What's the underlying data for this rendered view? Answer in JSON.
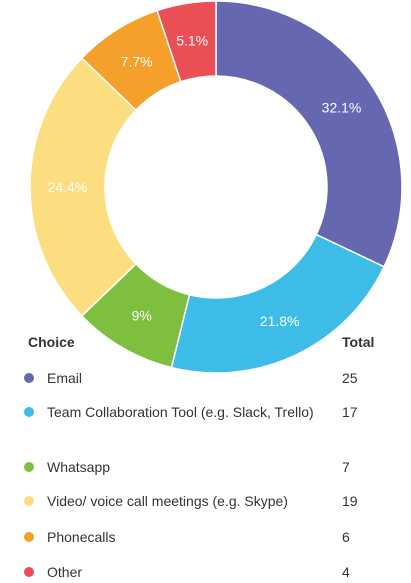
{
  "chart_data": {
    "type": "pie",
    "donut": true,
    "categories": [
      "Email",
      "Team Collaboration Tool (e.g. Slack, Trello)",
      "Whatsapp",
      "Video/ voice call meetings (e.g. Skype)",
      "Phonecalls",
      "Other"
    ],
    "values": [
      25,
      17,
      7,
      19,
      6,
      4
    ],
    "percent_labels": [
      "32.1%",
      "21.8%",
      "9%",
      "24.4%",
      "7.7%",
      "5.1%"
    ],
    "colors": [
      "#6567b0",
      "#3dbce8",
      "#7ebf3f",
      "#fcdd7f",
      "#f4a02a",
      "#e94f55"
    ]
  },
  "legend": {
    "header_choice": "Choice",
    "header_total": "Total",
    "rows": [
      {
        "label": "Email",
        "total": "25",
        "color": "#6567b0"
      },
      {
        "label": "Team Collaboration Tool (e.g. Slack, Trello)",
        "total": "17",
        "color": "#3dbce8"
      },
      {
        "label": "Whatsapp",
        "total": "7",
        "color": "#7ebf3f"
      },
      {
        "label": "Video/ voice call meetings (e.g. Skype)",
        "total": "19",
        "color": "#fcdd7f"
      },
      {
        "label": "Phonecalls",
        "total": "6",
        "color": "#f4a02a"
      },
      {
        "label": "Other",
        "total": "4",
        "color": "#e94f55"
      }
    ]
  }
}
